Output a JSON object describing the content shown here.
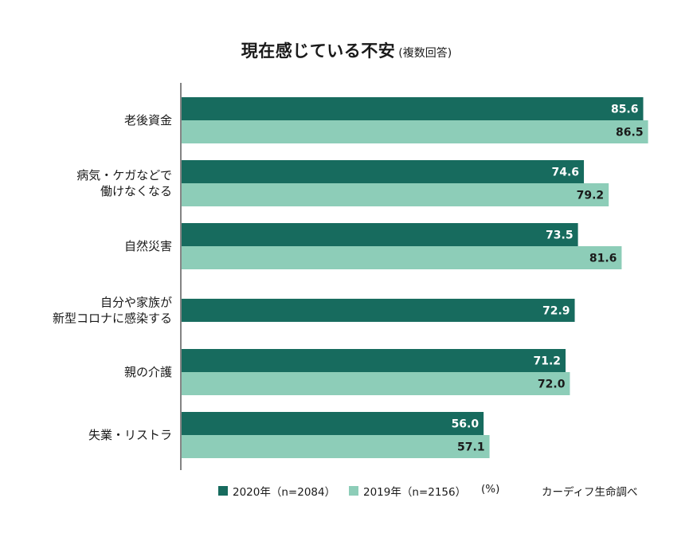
{
  "title": "現在感じている不安",
  "subtitle": "(複数回答)",
  "colors": {
    "series_2020": "#176b5e",
    "series_2019": "#8dcdb8",
    "label_2020": "#ffffff",
    "label_2019": "#1a1a1a",
    "axis": "#333333"
  },
  "legend": {
    "unit": "(%)",
    "source": "カーディフ生命調べ"
  },
  "chart_data": {
    "type": "bar",
    "orientation": "horizontal",
    "categories": [
      [
        "老後資金"
      ],
      [
        "病気・ケガなどで",
        "働けなくなる"
      ],
      [
        "自然災害"
      ],
      [
        "自分や家族が",
        "新型コロナに感染する"
      ],
      [
        "親の介護"
      ],
      [
        "失業・リストラ"
      ]
    ],
    "series": [
      {
        "name": "2020年（n=2084）",
        "values": [
          85.6,
          74.6,
          73.5,
          72.9,
          71.2,
          56.0
        ]
      },
      {
        "name": "2019年（n=2156）",
        "values": [
          86.5,
          79.2,
          81.6,
          null,
          72.0,
          57.1
        ]
      }
    ],
    "data_labels": [
      [
        "85.6",
        "74.6",
        "73.5",
        "72.9",
        "71.2",
        "56.0"
      ],
      [
        "86.5",
        "79.2",
        "81.6",
        "",
        "72.0",
        "57.1"
      ]
    ],
    "xlim": [
      0,
      100
    ],
    "grid": false,
    "legend_position": "bottom"
  }
}
